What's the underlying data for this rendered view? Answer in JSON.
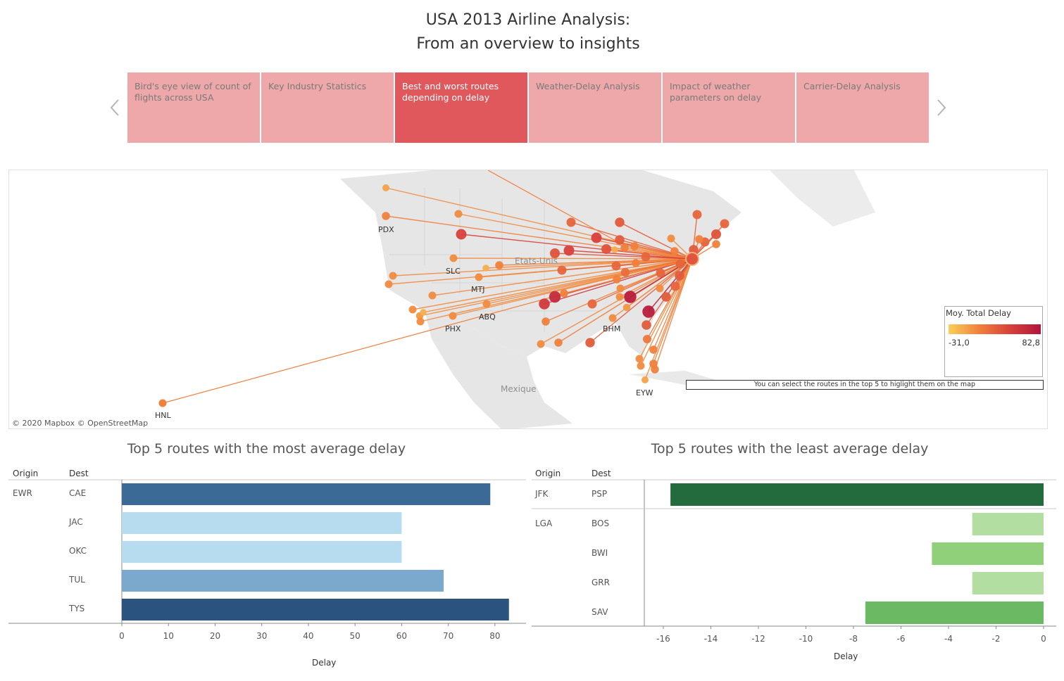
{
  "title": {
    "line1": "USA 2013 Airline Analysis:",
    "line2": "From an overview to insights"
  },
  "story_points": [
    {
      "label": "Bird's eye view of count of flights across USA",
      "active": false
    },
    {
      "label": "Key Industry Statistics",
      "active": false
    },
    {
      "label": "Best and worst routes depending on delay",
      "active": true
    },
    {
      "label": "Weather-Delay Analysis",
      "active": false
    },
    {
      "label": "Impact of weather parameters on delay",
      "active": false
    },
    {
      "label": "Carrier-Delay Analysis",
      "active": false
    }
  ],
  "nav_icons": {
    "prev": "chevron-left-icon",
    "next": "chevron-right-icon"
  },
  "map": {
    "legend": {
      "title": "Moy. Total Delay",
      "min": "-31,0",
      "max": "82,8",
      "color_low": "#f9d05b",
      "color_high": "#b1153c"
    },
    "hint": "You can select the routes in the top 5 to higlight them on the map",
    "attribution": "© 2020 Mapbox © OpenStreetMap",
    "airport_labels": [
      "PDX",
      "SLC",
      "MTJ",
      "ABQ",
      "PHX",
      "BHM",
      "EYW",
      "HNL"
    ],
    "country_labels": [
      "Etats-Unis",
      "Mexique"
    ]
  },
  "chart_data": [
    {
      "type": "bar",
      "title": "Top 5 routes with the most average delay",
      "row_headers": [
        "Origin",
        "Dest"
      ],
      "origin_groups": [
        {
          "origin": "EWR",
          "rows": 5
        }
      ],
      "categories": [
        "CAE",
        "JAC",
        "OKC",
        "TUL",
        "TYS"
      ],
      "values": [
        79,
        60,
        60,
        69,
        83
      ],
      "colors": [
        "#3b6a96",
        "#b8dcef",
        "#b8dcef",
        "#7aa9cd",
        "#2a537f"
      ],
      "xlabel": "Delay",
      "xlim": [
        0,
        85
      ],
      "ticks": [
        0,
        10,
        20,
        30,
        40,
        50,
        60,
        70,
        80
      ]
    },
    {
      "type": "bar",
      "title": "Top 5 routes with the least average delay",
      "row_headers": [
        "Origin",
        "Dest"
      ],
      "origin_groups": [
        {
          "origin": "JFK",
          "rows": 1
        },
        {
          "origin": "LGA",
          "rows": 4
        }
      ],
      "categories": [
        "PSP",
        "BOS",
        "BWI",
        "GRR",
        "SAV"
      ],
      "values": [
        -15.7,
        -3.0,
        -4.7,
        -3.0,
        -7.5
      ],
      "colors": [
        "#236a3c",
        "#b3dea2",
        "#90d07a",
        "#b3dea2",
        "#6cb964"
      ],
      "xlabel": "Delay",
      "xlim": [
        -16.8,
        0
      ],
      "ticks": [
        -16,
        -14,
        -12,
        -10,
        -8,
        -6,
        -4,
        -2,
        0
      ]
    }
  ]
}
